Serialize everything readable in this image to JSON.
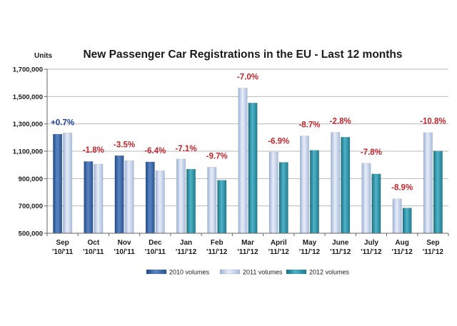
{
  "chart_data": {
    "type": "bar",
    "title": "New Passenger Car Registrations in the EU - Last 12 months",
    "ylabel": "Units",
    "ylim": [
      500000,
      1700000
    ],
    "yticks": [
      500000,
      700000,
      900000,
      1100000,
      1300000,
      1500000,
      1700000
    ],
    "ytick_labels": [
      "500,000",
      "700,000",
      "900,000",
      "1,100,000",
      "1,300,000",
      "1,500,000",
      "1,700,000"
    ],
    "grid": true,
    "legend_position": "bottom",
    "categories": [
      [
        "Sep",
        "'10/'11"
      ],
      [
        "Oct",
        "'10/'11"
      ],
      [
        "Nov",
        "'10/'11"
      ],
      [
        "Dec",
        "'10/'11"
      ],
      [
        "Jan",
        "'11/'12"
      ],
      [
        "Feb",
        "'11/'12"
      ],
      [
        "Mar",
        "'11/'12"
      ],
      [
        "April",
        "'11/'12"
      ],
      [
        "May",
        "'11/'12"
      ],
      [
        "June",
        "'11/'12"
      ],
      [
        "July",
        "'11/'12"
      ],
      [
        "Aug",
        "'11/'12"
      ],
      [
        "Sep",
        "'11/'12"
      ]
    ],
    "series": [
      {
        "name": "2010 volumes",
        "color": "#2f5f9e",
        "values": [
          1225000,
          1025000,
          1068000,
          1022000,
          null,
          null,
          null,
          null,
          null,
          null,
          null,
          null,
          null
        ]
      },
      {
        "name": "2011 volumes",
        "color": "#b9c9e6",
        "values": [
          1234000,
          1006000,
          1031000,
          957000,
          1043000,
          983000,
          1562000,
          1094000,
          1212000,
          1238000,
          1013000,
          752000,
          1236000
        ]
      },
      {
        "name": "2012 volumes",
        "color": "#2b8fa3",
        "values": [
          null,
          null,
          null,
          null,
          969000,
          888000,
          1453000,
          1019000,
          1107000,
          1203000,
          934000,
          685000,
          1102000
        ]
      }
    ],
    "annotations": [
      {
        "text": "+0.7%",
        "color": "#1f3f99",
        "y": 1290000
      },
      {
        "text": "-1.8%",
        "color": "#c0262d",
        "y": 1090000
      },
      {
        "text": "-3.5%",
        "color": "#c0262d",
        "y": 1130000
      },
      {
        "text": "-6.4%",
        "color": "#c0262d",
        "y": 1085000
      },
      {
        "text": "-7.1%",
        "color": "#c0262d",
        "y": 1100000
      },
      {
        "text": "-9.7%",
        "color": "#c0262d",
        "y": 1045000
      },
      {
        "text": "-7.0%",
        "color": "#c0262d",
        "y": 1625000
      },
      {
        "text": "-6.9%",
        "color": "#c0262d",
        "y": 1155000
      },
      {
        "text": "-8.7%",
        "color": "#c0262d",
        "y": 1275000
      },
      {
        "text": "-2.8%",
        "color": "#c0262d",
        "y": 1300000
      },
      {
        "text": "-7.8%",
        "color": "#c0262d",
        "y": 1075000
      },
      {
        "text": "-8.9%",
        "color": "#c0262d",
        "y": 815000
      },
      {
        "text": "-10.8%",
        "color": "#c0262d",
        "y": 1300000
      }
    ]
  }
}
